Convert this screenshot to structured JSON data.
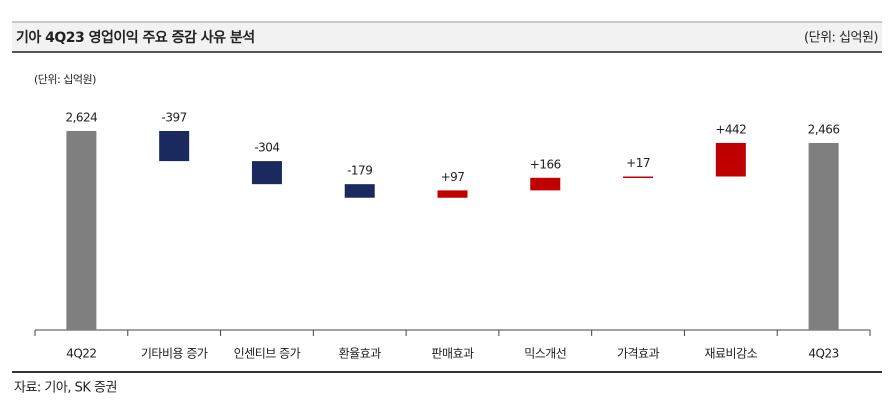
{
  "header": {
    "title": "기아 4Q23 영업이익 주요 증감 사유 분석",
    "unit": "(단위: 십억원)"
  },
  "chart_data": {
    "type": "waterfall",
    "unit_label": "(단위: 십억원)",
    "categories": [
      "4Q22",
      "기타비용 증가",
      "인센티브 증가",
      "환율효과",
      "판매효과",
      "믹스개선",
      "가격효과",
      "재료비감소",
      "4Q23"
    ],
    "values": [
      2624,
      -397,
      -304,
      -179,
      97,
      166,
      17,
      442,
      2466
    ],
    "value_labels": [
      "2,624",
      "-397",
      "-304",
      "-179",
      "+97",
      "+166",
      "+17",
      "+442",
      "2,466"
    ],
    "colors": {
      "total": "#7f7f7f",
      "decrease": "#1b2a5e",
      "increase": "#c00000"
    }
  },
  "footer": {
    "source": "자료: 기아, SK 증권"
  }
}
